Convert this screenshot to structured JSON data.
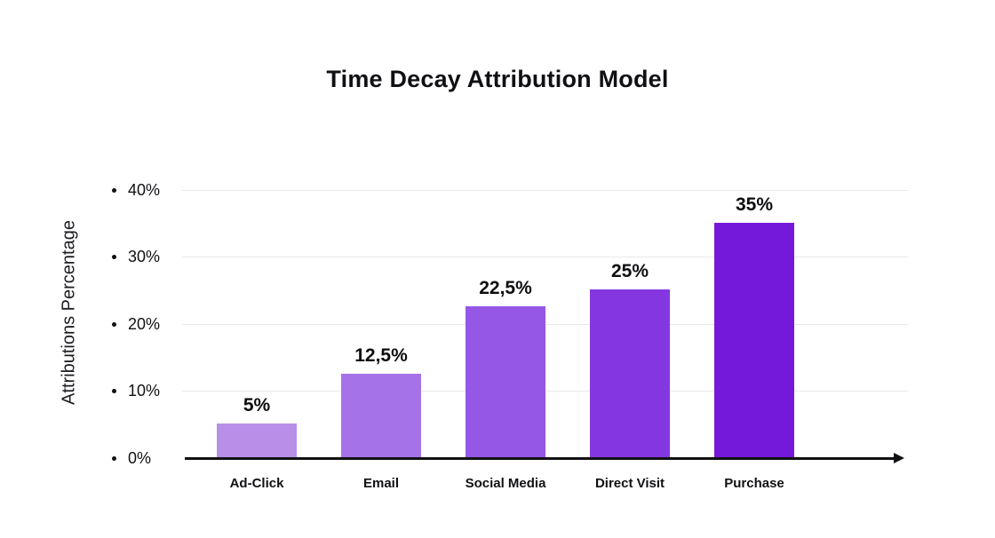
{
  "title": "Time Decay Attribution Model",
  "chart_data": {
    "type": "bar",
    "title": "Time Decay Attribution Model",
    "xlabel": "",
    "ylabel": "Attributions Percentage",
    "categories": [
      "Ad-Click",
      "Email",
      "Social Media",
      "Direct Visit",
      "Purchase"
    ],
    "values": [
      5,
      12.5,
      22.5,
      25,
      35
    ],
    "value_labels": [
      "5%",
      "12,5%",
      "22,5%",
      "25%",
      "35%"
    ],
    "bar_colors": [
      "#b78fe8",
      "#a672e8",
      "#9557e5",
      "#8437e0",
      "#7419d9"
    ],
    "ylim": [
      0,
      40
    ],
    "yticks": [
      0,
      10,
      20,
      30,
      40
    ],
    "ytick_labels": [
      "0%",
      "10%",
      "20%",
      "30%",
      "40%"
    ],
    "grid": true,
    "legend": false,
    "axis_arrow": "right"
  }
}
